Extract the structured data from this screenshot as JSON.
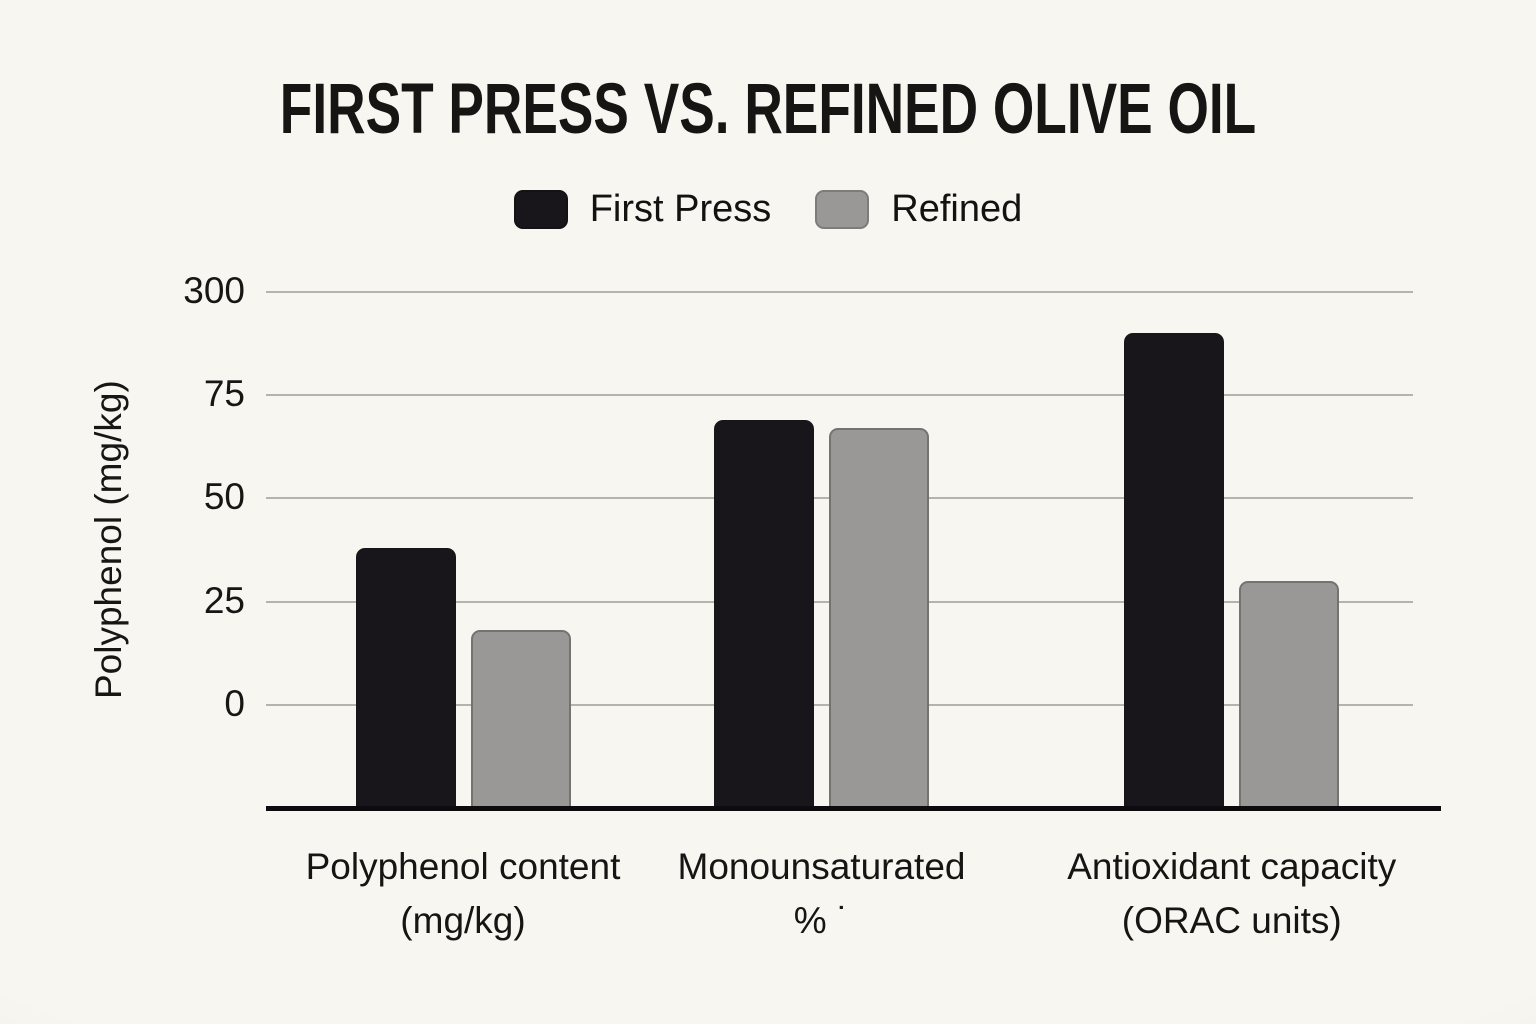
{
  "chart_data": {
    "type": "bar",
    "title": "FIRST PRESS VS. REFINED OLIVE OIL",
    "ylabel": "Polyphenol (mg/kg)",
    "categories": [
      [
        "Polyphenol content",
        "(mg/kg)"
      ],
      [
        "Monounsaturated",
        "% ˙"
      ],
      [
        "Antioxidant capacity",
        "(ORAC units)"
      ]
    ],
    "series": [
      {
        "name": "First Press",
        "color": "#18161a",
        "values": [
          38,
          69,
          210
        ]
      },
      {
        "name": "Refined",
        "color": "#9a9896",
        "values": [
          18,
          67,
          30
        ]
      }
    ],
    "y_ticks": [
      0,
      25,
      50,
      75,
      300
    ],
    "y_axis_note": "gridlines evenly spaced; segment 75→300 spans one gap (non-linear scale); bars extend below the 0 gridline to the axis line",
    "grid": true,
    "legend_position": "top-center"
  },
  "colors": {
    "background": "#f8f6f1",
    "gridline": "#b5b3ae",
    "axis_line": "#0c0b0d",
    "bar_black": "#18161a",
    "bar_gray": "#9a9896",
    "text": "#161514"
  }
}
